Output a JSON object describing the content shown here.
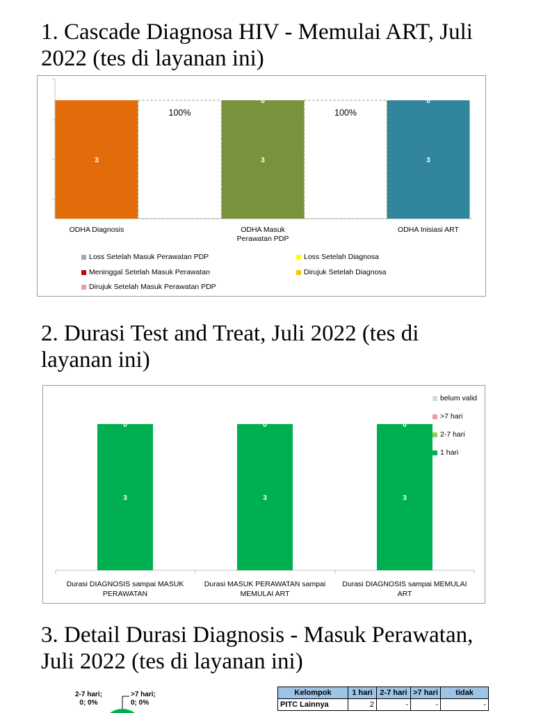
{
  "sections": [
    {
      "title": "1. Cascade Diagnosa HIV - Memulai ART, Juli 2022 (tes di layanan ini)"
    },
    {
      "title": "2. Durasi Test and Treat, Juli 2022 (tes di layanan ini)"
    },
    {
      "title": "3. Detail Durasi Diagnosis - Masuk Perawatan, Juli 2022 (tes di layanan ini)"
    }
  ],
  "chart_data": [
    {
      "type": "bar",
      "title": "Cascade Diagnosa HIV - Memulai ART, Juli 2022 (tes di layanan ini)",
      "categories": [
        "ODHA Diagnosis",
        "ODHA Masuk Perawatan PDP",
        "ODHA Inisiasi ART"
      ],
      "category_lines": [
        [
          "ODHA Diagnosis"
        ],
        [
          "ODHA Masuk",
          "Perawatan PDP"
        ],
        [
          "ODHA Inisiasi ART"
        ]
      ],
      "values": [
        3,
        3,
        3
      ],
      "top_labels": [
        "",
        "0",
        "0"
      ],
      "bar_colors": [
        "#e36c0a",
        "#77933c",
        "#31859c"
      ],
      "connector_labels": [
        "100%",
        "100%"
      ],
      "ylim": [
        0,
        3
      ],
      "grid": false,
      "legend": [
        {
          "label": "Loss Setelah Masuk Perawatan PDP",
          "color": "#a6a6a6"
        },
        {
          "label": "Loss Setelah Diagnosa",
          "color": "#ffff00"
        },
        {
          "label": "Meninggal Setelah Masuk Perawatan",
          "color": "#c00000"
        },
        {
          "label": "Dirujuk Setelah Diagnosa",
          "color": "#ffc000"
        },
        {
          "label": "Dirujuk Setelah Masuk Perawatan PDP",
          "color": "#e6a0a0"
        }
      ],
      "legend_position": "bottom"
    },
    {
      "type": "bar",
      "stacked": true,
      "title": "Durasi Test and Treat, Juli 2022 (tes di layanan ini)",
      "categories": [
        "Durasi DIAGNOSIS sampai MASUK PERAWATAN",
        "Durasi MASUK PERAWATAN sampai MEMULAI ART",
        "Durasi DIAGNOSIS sampai MEMULAI ART"
      ],
      "category_lines": [
        [
          "Durasi DIAGNOSIS sampai MASUK",
          "PERAWATAN"
        ],
        [
          "Durasi MASUK PERAWATAN sampai",
          "MEMULAI ART"
        ],
        [
          "Durasi DIAGNOSIS sampai MEMULAI",
          "ART"
        ]
      ],
      "series": [
        {
          "name": "1 hari",
          "color": "#00b050",
          "values": [
            3,
            3,
            3
          ]
        },
        {
          "name": "2-7 hari",
          "color": "#92d050",
          "values": [
            0,
            0,
            0
          ]
        },
        {
          "name": ">7 hari",
          "color": "#e6a0a0",
          "values": [
            0,
            0,
            0
          ]
        },
        {
          "name": "belum valid",
          "color": "#d9d9d9",
          "values": [
            0,
            0,
            0
          ]
        }
      ],
      "top_labels": [
        "0",
        "0",
        "0"
      ],
      "ylim": [
        0,
        3
      ],
      "grid": false,
      "legend_position": "right"
    }
  ],
  "pie_fragment": {
    "labels": [
      {
        "line1": "2-7 hari;",
        "line2": "0; 0%"
      },
      {
        "line1": ">7 hari;",
        "line2": "0; 0%"
      }
    ]
  },
  "detail_table": {
    "headers": [
      "Kelompok",
      "1 hari",
      "2-7 hari",
      ">7 hari",
      "tidak"
    ],
    "rows": [
      [
        "PITC Lainnya",
        "2",
        "-",
        "-",
        "-"
      ]
    ]
  }
}
